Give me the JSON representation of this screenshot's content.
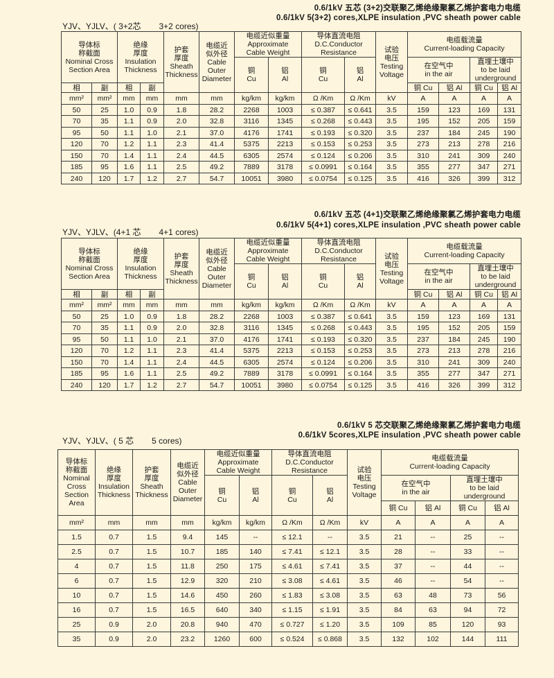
{
  "tables": [
    {
      "title_cn": "0.6/1kV 五芯 (3+2)交联聚乙烯绝缘聚氯乙烯护套电力电缆",
      "title_en": "0.6/1kV 5(3+2) cores,XLPE insulation ,PVC sheath power cable",
      "subtitle_cn": "YJV、YJLV、( 3+2芯",
      "subtitle_en": "3+2 cores)",
      "header": {
        "nominal": "导体标\n称截面\nNominal Cross\nSection Area",
        "insulation": "绝缘\n厚度\nInsulation\nThickness",
        "sheath": "护套\n厚度\nSheath\nThickness",
        "diameter": "电缆近\n似外径\nCable\nOuter\nDiameter",
        "weight": "电缆近似重量\nApproximate\nCable Weight",
        "resistance": "导体直流电阻\nD.C.Conductor\nResistance",
        "testing": "试验\n电压\nTesting\nVoltage",
        "current": "电缆载流量\nCurrent-loading Capacity",
        "cu": "铜\nCu",
        "al": "铝\nAl",
        "air": "在空气中\nin the air",
        "underground": "直埋土壤中\nto be laid\nunderground",
        "phase": "相",
        "neutral": "副",
        "cu_short": "铜 Cu",
        "al_short": "铝 Al"
      },
      "units": [
        "mm²",
        "mm²",
        "mm",
        "mm",
        "mm",
        "mm",
        "kg/km",
        "kg/km",
        "Ω /Km",
        "Ω /Km",
        "kV",
        "A",
        "A",
        "A",
        "A"
      ],
      "rows": [
        [
          "50",
          "25",
          "1.0",
          "0.9",
          "1.8",
          "28.2",
          "2268",
          "1003",
          "≤ 0.387",
          "≤ 0.641",
          "3.5",
          "159",
          "123",
          "169",
          "131"
        ],
        [
          "70",
          "35",
          "1.1",
          "0.9",
          "2.0",
          "32.8",
          "3116",
          "1345",
          "≤ 0.268",
          "≤ 0.443",
          "3.5",
          "195",
          "152",
          "205",
          "159"
        ],
        [
          "95",
          "50",
          "1.1",
          "1.0",
          "2.1",
          "37.0",
          "4176",
          "1741",
          "≤ 0.193",
          "≤ 0.320",
          "3.5",
          "237",
          "184",
          "245",
          "190"
        ],
        [
          "120",
          "70",
          "1.2",
          "1.1",
          "2.3",
          "41.4",
          "5375",
          "2213",
          "≤ 0.153",
          "≤ 0.253",
          "3.5",
          "273",
          "213",
          "278",
          "216"
        ],
        [
          "150",
          "70",
          "1.4",
          "1.1",
          "2.4",
          "44.5",
          "6305",
          "2574",
          "≤ 0.124",
          "≤ 0.206",
          "3.5",
          "310",
          "241",
          "309",
          "240"
        ],
        [
          "185",
          "95",
          "1.6",
          "1.1",
          "2.5",
          "49.2",
          "7889",
          "3178",
          "≤ 0.0991",
          "≤ 0.164",
          "3.5",
          "355",
          "277",
          "347",
          "271"
        ],
        [
          "240",
          "120",
          "1.7",
          "1.2",
          "2.7",
          "54.7",
          "10051",
          "3980",
          "≤ 0.0754",
          "≤ 0.125",
          "3.5",
          "416",
          "326",
          "399",
          "312"
        ]
      ]
    },
    {
      "title_cn": "0.6/1kV 五芯 (4+1)交联聚乙烯绝缘聚氯乙烯护套电力电缆",
      "title_en": "0.6/1kV 5(4+1) cores,XLPE insulation ,PVC sheath power cable",
      "subtitle_cn": "YJV、YJLV、(4+1 芯",
      "subtitle_en": "4+1 cores)",
      "header": {
        "nominal": "导体标\n称截面\nNominal Cross\nSection Area",
        "insulation": "绝缘\n厚度\nInsulation\nThickness",
        "sheath": "护套\n厚度\nSheath\nThickness",
        "diameter": "电缆近\n似外径\nCable\nOuter\nDiameter",
        "weight": "电缆近似重量\nApproximate\nCable Weight",
        "resistance": "导体直流电阻\nD.C.Conductor\nResistance",
        "testing": "试验\n电压\nTesting\nVoltage",
        "current": "电缆载流量\nCurrent-loading Capacity",
        "cu": "铜\nCu",
        "al": "铝\nAl",
        "air": "在空气中\nin the air",
        "underground": "直埋土壤中\nto be laid\nunderground",
        "phase": "相",
        "neutral": "副",
        "cu_short": "铜 Cu",
        "al_short": "铝 Al"
      },
      "units": [
        "mm²",
        "mm²",
        "mm",
        "mm",
        "mm",
        "mm",
        "kg/km",
        "kg/km",
        "Ω /Km",
        "Ω /Km",
        "kV",
        "A",
        "A",
        "A",
        "A"
      ],
      "rows": [
        [
          "50",
          "25",
          "1.0",
          "0.9",
          "1.8",
          "28.2",
          "2268",
          "1003",
          "≤ 0.387",
          "≤ 0.641",
          "3.5",
          "159",
          "123",
          "169",
          "131"
        ],
        [
          "70",
          "35",
          "1.1",
          "0.9",
          "2.0",
          "32.8",
          "3116",
          "1345",
          "≤ 0.268",
          "≤ 0.443",
          "3.5",
          "195",
          "152",
          "205",
          "159"
        ],
        [
          "95",
          "50",
          "1.1",
          "1.0",
          "2.1",
          "37.0",
          "4176",
          "1741",
          "≤ 0.193",
          "≤ 0.320",
          "3.5",
          "237",
          "184",
          "245",
          "190"
        ],
        [
          "120",
          "70",
          "1.2",
          "1.1",
          "2.3",
          "41.4",
          "5375",
          "2213",
          "≤ 0.153",
          "≤ 0.253",
          "3.5",
          "273",
          "213",
          "278",
          "216"
        ],
        [
          "150",
          "70",
          "1.4",
          "1.1",
          "2.4",
          "44.5",
          "6305",
          "2574",
          "≤ 0.124",
          "≤ 0.206",
          "3.5",
          "310",
          "241",
          "309",
          "240"
        ],
        [
          "185",
          "95",
          "1.6",
          "1.1",
          "2.5",
          "49.2",
          "7889",
          "3178",
          "≤ 0.0991",
          "≤ 0.164",
          "3.5",
          "355",
          "277",
          "347",
          "271"
        ],
        [
          "240",
          "120",
          "1.7",
          "1.2",
          "2.7",
          "54.7",
          "10051",
          "3980",
          "≤ 0.0754",
          "≤ 0.125",
          "3.5",
          "416",
          "326",
          "399",
          "312"
        ]
      ]
    },
    {
      "title_cn": "0.6/1kV 5 芯交联聚乙烯绝缘聚氯乙烯护套电力电缆",
      "title_en": "0.6/1kV 5cores,XLPE insulation ,PVC sheath power cable",
      "subtitle_cn": "YJV、YJLV、( 5 芯",
      "subtitle_en": "5 cores)",
      "header": {
        "nominal": "导体标\n称截面\nNominal\nCross\nSection Area",
        "insulation": "绝缘\n厚度\nInsulation\nThickness",
        "sheath": "护套\n厚度\nSheath\nThickness",
        "diameter": "电缆近\n似外径\nCable\nOuter\nDiameter",
        "weight": "电缆近似重量\nApproximate\nCable Weight",
        "resistance": "导体直流电阻\nD.C.Conductor\nResistance",
        "testing": "试验\n电压\nTesting\nVoltage",
        "current": "电缆载流量\nCurrent-loading Capacity",
        "cu": "铜\nCu",
        "al": "铝\nAl",
        "air": "在空气中\nin the air",
        "underground": "直埋土壤中\nto be laid\nunderground",
        "cu_short": "铜 Cu",
        "al_short": "铝 Al"
      },
      "units": [
        "mm²",
        "mm",
        "mm",
        "mm",
        "kg/km",
        "kg/km",
        "Ω /Km",
        "Ω /Km",
        "kV",
        "A",
        "A",
        "A",
        "A"
      ],
      "rows": [
        [
          "1.5",
          "0.7",
          "1.5",
          "9.4",
          "145",
          "--",
          "≤ 12.1",
          "--",
          "3.5",
          "21",
          "--",
          "25",
          "--"
        ],
        [
          "2.5",
          "0.7",
          "1.5",
          "10.7",
          "185",
          "140",
          "≤ 7.41",
          "≤ 12.1",
          "3.5",
          "28",
          "--",
          "33",
          "--"
        ],
        [
          "4",
          "0.7",
          "1.5",
          "11.8",
          "250",
          "175",
          "≤ 4.61",
          "≤ 7.41",
          "3.5",
          "37",
          "--",
          "44",
          "--"
        ],
        [
          "6",
          "0.7",
          "1.5",
          "12.9",
          "320",
          "210",
          "≤ 3.08",
          "≤ 4.61",
          "3.5",
          "46",
          "--",
          "54",
          "--"
        ],
        [
          "10",
          "0.7",
          "1.5",
          "14.6",
          "450",
          "260",
          "≤ 1.83",
          "≤ 3.08",
          "3.5",
          "63",
          "48",
          "73",
          "56"
        ],
        [
          "16",
          "0.7",
          "1.5",
          "16.5",
          "640",
          "340",
          "≤ 1.15",
          "≤ 1.91",
          "3.5",
          "84",
          "63",
          "94",
          "72"
        ],
        [
          "25",
          "0.9",
          "2.0",
          "20.8",
          "940",
          "470",
          "≤ 0.727",
          "≤ 1.20",
          "3.5",
          "109",
          "85",
          "120",
          "93"
        ],
        [
          "35",
          "0.9",
          "2.0",
          "23.2",
          "1260",
          "600",
          "≤ 0.524",
          "≤ 0.868",
          "3.5",
          "132",
          "102",
          "144",
          "111"
        ]
      ]
    }
  ]
}
